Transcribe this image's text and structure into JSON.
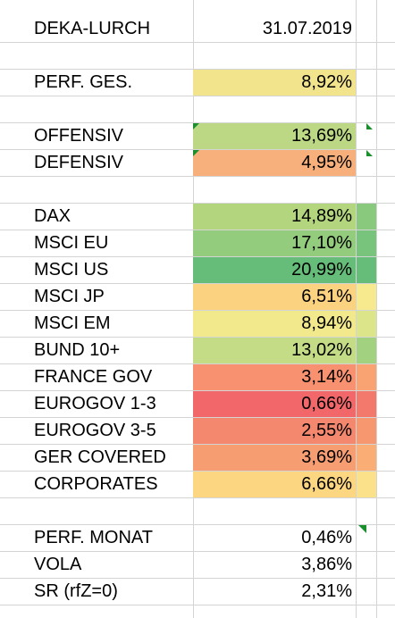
{
  "sheet": {
    "header": {
      "name": "DEKA-LURCH",
      "date": "31.07.2019"
    },
    "perf_total": {
      "label": "PERF. GES.",
      "value": "8,92%",
      "color": "#f1e48c"
    },
    "offensiv": {
      "label": "OFFENSIV",
      "value": "13,69%",
      "color": "#bcd885"
    },
    "defensiv": {
      "label": "DEFENSIV",
      "value": "4,95%",
      "color": "#f7b07b"
    },
    "markets": [
      {
        "label": "DAX",
        "value": "14,89%",
        "color": "#b2d57e",
        "extra": "#88c97d"
      },
      {
        "label": "MSCI EU",
        "value": "17,10%",
        "color": "#94cc7d",
        "extra": "#79c47c"
      },
      {
        "label": "MSCI US",
        "value": "20,99%",
        "color": "#66bd79",
        "extra": "#66bd79"
      },
      {
        "label": "MSCI JP",
        "value": "6,51%",
        "color": "#fbd280",
        "extra": "#f7e98e"
      },
      {
        "label": "MSCI EM",
        "value": "8,94%",
        "color": "#f2e88c",
        "extra": "#dde58a"
      },
      {
        "label": "BUND 10+",
        "value": "13,02%",
        "color": "#c5dc86",
        "extra": "#a2d17f"
      },
      {
        "label": "FRANCE GOV",
        "value": "3,14%",
        "color": "#f7916f",
        "extra": "#f9a372"
      },
      {
        "label": "EUROGOV 1-3",
        "value": "0,66%",
        "color": "#f2676a",
        "extra": "#f4796d"
      },
      {
        "label": "EUROGOV 3-5",
        "value": "2,55%",
        "color": "#f4886e",
        "extra": "#f69770"
      },
      {
        "label": "GER COVERED",
        "value": "3,69%",
        "color": "#f79d72",
        "extra": "#faad75"
      },
      {
        "label": "CORPORATES",
        "value": "6,66%",
        "color": "#fcd680",
        "extra": "#fbe18a"
      }
    ],
    "stats": [
      {
        "label": "PERF. MONAT",
        "value": "0,46%"
      },
      {
        "label": "VOLA",
        "value": "3,86%"
      },
      {
        "label": "SR (rfZ=0)",
        "value": "2,31%"
      }
    ]
  }
}
